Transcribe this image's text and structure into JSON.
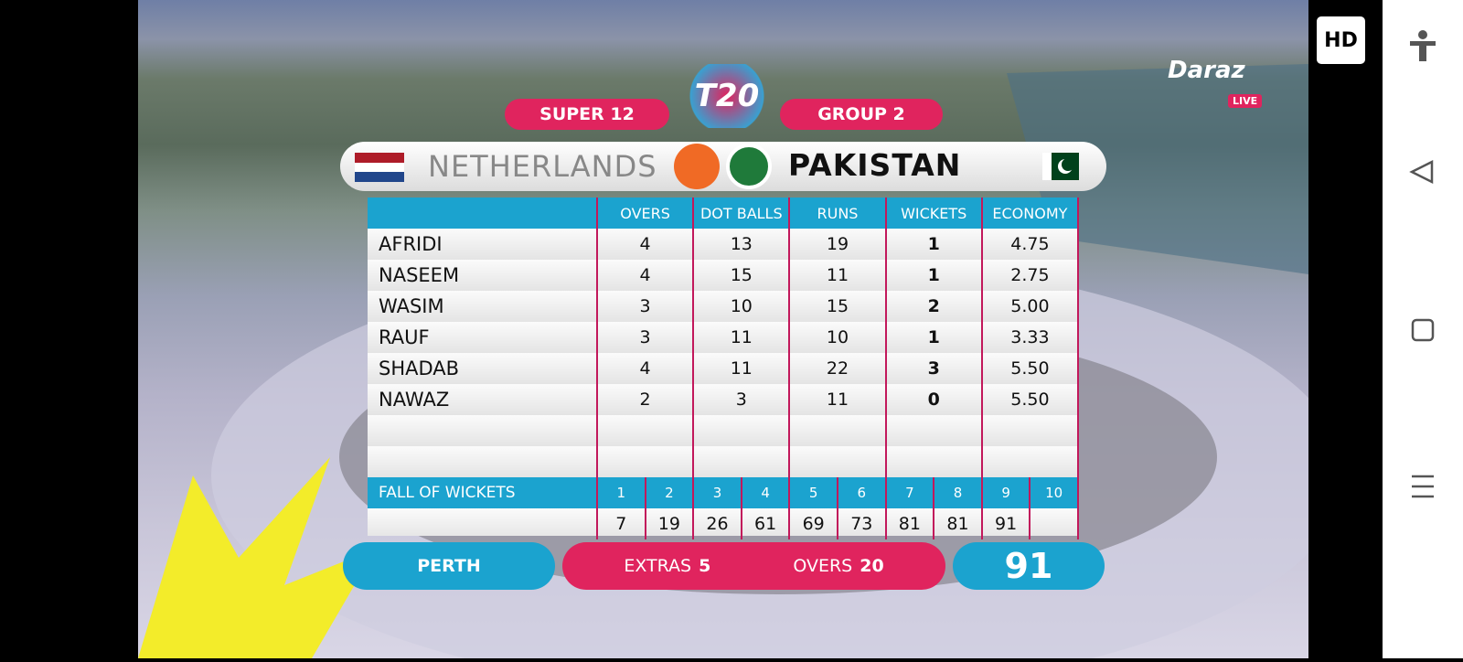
{
  "badge": "HD",
  "sponsor": {
    "name": "Daraz",
    "live": "LIVE"
  },
  "logo": "T20",
  "header": {
    "stage": "SUPER 12",
    "group": "GROUP 2",
    "batting_team": "NETHERLANDS",
    "bowling_team": "PAKISTAN"
  },
  "table": {
    "columns": [
      "OVERS",
      "DOT BALLS",
      "RUNS",
      "WICKETS",
      "ECONOMY"
    ],
    "rows": [
      [
        "AFRIDI",
        4,
        13,
        19,
        1,
        "4.75"
      ],
      [
        "NASEEM",
        4,
        15,
        11,
        1,
        "2.75"
      ],
      [
        "WASIM",
        3,
        10,
        15,
        2,
        "5.00"
      ],
      [
        "RAUF",
        3,
        11,
        10,
        1,
        "3.33"
      ],
      [
        "SHADAB",
        4,
        11,
        22,
        3,
        "5.50"
      ],
      [
        "NAWAZ",
        2,
        3,
        11,
        0,
        "5.50"
      ]
    ]
  },
  "fall_of_wickets": {
    "label": "FALL OF WICKETS",
    "wickets": [
      1,
      2,
      3,
      4,
      5,
      6,
      7,
      8,
      9,
      10
    ],
    "scores": [
      7,
      19,
      26,
      61,
      69,
      73,
      81,
      81,
      91
    ]
  },
  "footer": {
    "venue": "PERTH",
    "extras_label": "EXTRAS",
    "extras": 5,
    "overs_label": "OVERS",
    "overs": 20,
    "total": 91
  }
}
